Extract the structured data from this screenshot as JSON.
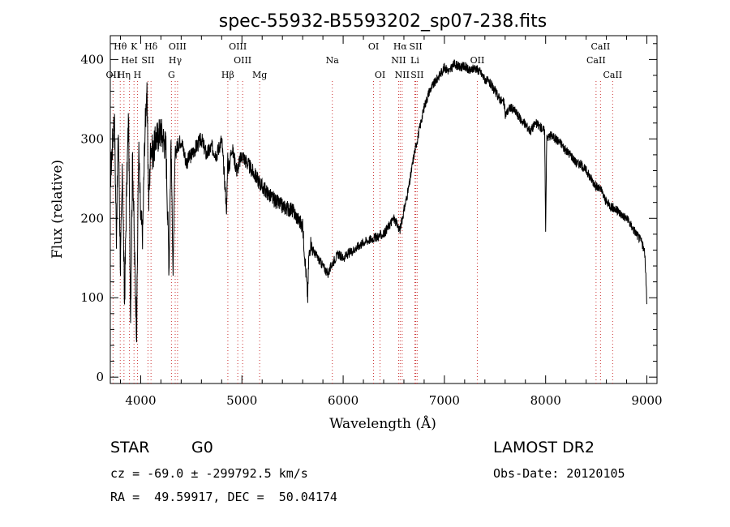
{
  "chart_data": {
    "type": "line",
    "title": "spec-55932-B5593202_sp07-238.fits",
    "xlabel": "Wavelength (Å)",
    "ylabel": "Flux (relative)",
    "xlim": [
      3700,
      9100
    ],
    "ylim": [
      -8,
      430
    ],
    "xticks": [
      4000,
      5000,
      6000,
      7000,
      8000,
      9000
    ],
    "yticks": [
      0,
      100,
      200,
      300,
      400
    ],
    "grid": false,
    "series": [
      {
        "x": [
          3700,
          3720,
          3740,
          3760,
          3780,
          3800,
          3820,
          3840,
          3860,
          3880,
          3900,
          3920,
          3940,
          3960,
          3980,
          4000,
          4020,
          4040,
          4060,
          4080,
          4100,
          4120,
          4150,
          4200,
          4250,
          4280,
          4300,
          4320,
          4340,
          4360,
          4400,
          4450,
          4500,
          4550,
          4600,
          4650,
          4700,
          4750,
          4800,
          4850,
          4860,
          4870,
          4900,
          4950,
          5000,
          5100,
          5200,
          5300,
          5400,
          5500,
          5550,
          5600,
          5650,
          5660,
          5680,
          5700,
          5750,
          5800,
          5850,
          5900,
          5950,
          6000,
          6100,
          6200,
          6300,
          6400,
          6500,
          6560,
          6600,
          6650,
          6700,
          6750,
          6800,
          6850,
          6900,
          6950,
          7000,
          7050,
          7100,
          7150,
          7200,
          7250,
          7300,
          7350,
          7400,
          7450,
          7500,
          7550,
          7590,
          7600,
          7650,
          7700,
          7750,
          7800,
          7850,
          7900,
          7950,
          7990,
          8000,
          8010,
          8050,
          8100,
          8150,
          8200,
          8250,
          8300,
          8350,
          8400,
          8450,
          8500,
          8550,
          8600,
          8650,
          8700,
          8750,
          8800,
          8850,
          8900,
          8950,
          8980,
          9000
        ],
        "y": [
          250,
          290,
          330,
          180,
          310,
          140,
          260,
          90,
          230,
          330,
          80,
          280,
          150,
          60,
          290,
          200,
          180,
          300,
          365,
          220,
          295,
          280,
          300,
          310,
          290,
          140,
          300,
          130,
          280,
          290,
          300,
          270,
          280,
          290,
          300,
          280,
          290,
          280,
          300,
          210,
          280,
          260,
          290,
          260,
          280,
          260,
          240,
          225,
          215,
          210,
          200,
          190,
          100,
          150,
          170,
          160,
          150,
          140,
          130,
          145,
          155,
          150,
          160,
          170,
          175,
          180,
          200,
          185,
          210,
          240,
          280,
          310,
          340,
          360,
          370,
          380,
          390,
          385,
          395,
          390,
          392,
          385,
          390,
          385,
          375,
          370,
          360,
          350,
          345,
          330,
          340,
          335,
          325,
          318,
          310,
          320,
          315,
          310,
          185,
          300,
          305,
          300,
          295,
          285,
          280,
          270,
          268,
          260,
          250,
          240,
          235,
          220,
          215,
          210,
          205,
          200,
          190,
          180,
          170,
          155,
          95
        ]
      }
    ],
    "spectral_lines": [
      {
        "label": "Hθ",
        "x": 3798,
        "row": 1
      },
      {
        "label": "K",
        "x": 3934,
        "row": 1
      },
      {
        "label": "Hδ",
        "x": 4102,
        "row": 1
      },
      {
        "label": "OIII",
        "x": 4364,
        "row": 1
      },
      {
        "label": "OIII",
        "x": 4959,
        "row": 1
      },
      {
        "label": "OI",
        "x": 6300,
        "row": 1
      },
      {
        "label": "Hα",
        "x": 6563,
        "row": 1
      },
      {
        "label": "SII",
        "x": 6717,
        "row": 1
      },
      {
        "label": "CaII",
        "x": 8542,
        "row": 1
      },
      {
        "label": "HeI",
        "x": 3889,
        "row": 2
      },
      {
        "label": "SII",
        "x": 4072,
        "row": 2
      },
      {
        "label": "Hγ",
        "x": 4341,
        "row": 2
      },
      {
        "label": "OIII",
        "x": 5007,
        "row": 2
      },
      {
        "label": "Na",
        "x": 5893,
        "row": 2
      },
      {
        "label": "NII",
        "x": 6548,
        "row": 2
      },
      {
        "label": "Li",
        "x": 6708,
        "row": 2
      },
      {
        "label": "OII",
        "x": 7325,
        "row": 2
      },
      {
        "label": "CaII",
        "x": 8498,
        "row": 2
      },
      {
        "label": "OII",
        "x": 3727,
        "row": 3
      },
      {
        "label": "Hη",
        "x": 3835,
        "row": 3
      },
      {
        "label": "H",
        "x": 3968,
        "row": 3
      },
      {
        "label": "G",
        "x": 4304,
        "row": 3
      },
      {
        "label": "Hβ",
        "x": 4861,
        "row": 3
      },
      {
        "label": "Mg",
        "x": 5175,
        "row": 3
      },
      {
        "label": "OI",
        "x": 6364,
        "row": 3
      },
      {
        "label": "NII",
        "x": 6583,
        "row": 3
      },
      {
        "label": "SII",
        "x": 6731,
        "row": 3
      },
      {
        "label": "CaII",
        "x": 8662,
        "row": 3
      }
    ]
  },
  "info": {
    "class_label": "STAR",
    "subclass_label": "G0",
    "survey_label": "LAMOST DR2",
    "cz_line": "cz = -69.0 ± -299792.5 km/s",
    "obs_date_line": "Obs-Date: 20120105",
    "coords_line": "RA =  49.59917, DEC =  50.04174"
  }
}
